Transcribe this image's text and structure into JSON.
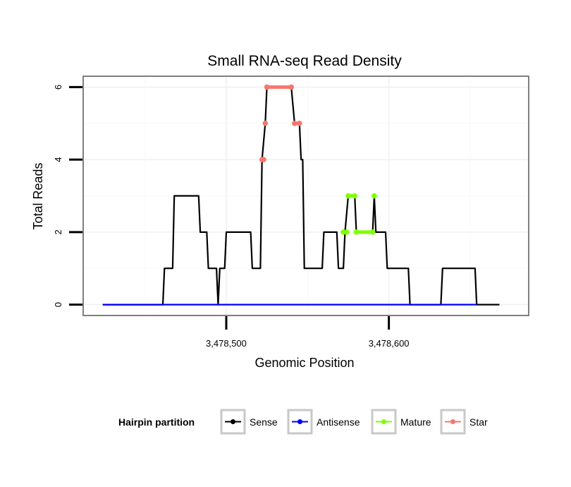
{
  "chart_data": {
    "type": "line",
    "title": "Small RNA-seq Read Density",
    "xlabel": "Genomic Position",
    "ylabel": "Total Reads",
    "xlim": [
      3478412,
      3478686
    ],
    "ylim": [
      -0.3,
      6.3
    ],
    "x_ticks": [
      3478500,
      3478600
    ],
    "x_tick_labels": [
      "3,478,500",
      "3,478,600"
    ],
    "y_ticks": [
      0,
      2,
      4,
      6
    ],
    "y_tick_labels": [
      "0",
      "2",
      "4",
      "6"
    ],
    "grid": true,
    "legend_position": "bottom",
    "series": [
      {
        "name": "Sense",
        "color": "#000000",
        "marker": false,
        "points": [
          [
            3478424,
            0
          ],
          [
            3478461,
            0
          ],
          [
            3478462,
            1
          ],
          [
            3478467,
            1
          ],
          [
            3478468,
            3
          ],
          [
            3478483,
            3
          ],
          [
            3478484,
            2
          ],
          [
            3478488,
            2
          ],
          [
            3478489,
            1
          ],
          [
            3478494,
            1
          ],
          [
            3478495,
            0
          ],
          [
            3478496,
            1
          ],
          [
            3478499,
            1
          ],
          [
            3478500,
            2
          ],
          [
            3478515,
            2
          ],
          [
            3478516,
            1
          ],
          [
            3478521,
            1
          ],
          [
            3478522,
            4
          ],
          [
            3478524,
            5
          ],
          [
            3478525,
            6
          ],
          [
            3478540,
            6
          ],
          [
            3478542,
            5
          ],
          [
            3478545,
            5
          ],
          [
            3478546,
            4
          ],
          [
            3478547,
            4
          ],
          [
            3478548,
            1
          ],
          [
            3478559,
            1
          ],
          [
            3478560,
            2
          ],
          [
            3478568,
            2
          ],
          [
            3478569,
            1
          ],
          [
            3478572,
            1
          ],
          [
            3478573,
            2
          ],
          [
            3478575,
            3
          ],
          [
            3478579,
            3
          ],
          [
            3478580,
            2
          ],
          [
            3478590,
            2
          ],
          [
            3478591,
            3
          ],
          [
            3478592,
            2
          ],
          [
            3478598,
            2
          ],
          [
            3478599,
            1
          ],
          [
            3478612,
            1
          ],
          [
            3478613,
            0
          ],
          [
            3478632,
            0
          ],
          [
            3478633,
            1
          ],
          [
            3478653,
            1
          ],
          [
            3478654,
            0
          ],
          [
            3478668,
            0
          ]
        ]
      },
      {
        "name": "Antisense",
        "color": "#0000ff",
        "marker": false,
        "points": [
          [
            3478424,
            0
          ],
          [
            3478654,
            0
          ]
        ]
      },
      {
        "name": "Mature",
        "color": "#7fff00",
        "marker": true,
        "segments": [
          [
            [
              3478572,
              2
            ],
            [
              3478574,
              2
            ]
          ],
          [
            [
              3478575,
              3
            ],
            [
              3478579,
              3
            ]
          ],
          [
            [
              3478580,
              2
            ],
            [
              3478590,
              2
            ]
          ],
          [
            [
              3478591,
              3
            ]
          ]
        ]
      },
      {
        "name": "Star",
        "color": "#f8766d",
        "marker": true,
        "segments": [
          [
            [
              3478522,
              4
            ],
            [
              3478523,
              4
            ]
          ],
          [
            [
              3478524,
              5
            ]
          ],
          [
            [
              3478525,
              6
            ],
            [
              3478540,
              6
            ]
          ],
          [
            [
              3478542,
              5
            ],
            [
              3478545,
              5
            ]
          ]
        ]
      }
    ],
    "legend": {
      "title": "Hairpin partition",
      "entries": [
        "Sense",
        "Antisense",
        "Mature",
        "Star"
      ]
    }
  }
}
